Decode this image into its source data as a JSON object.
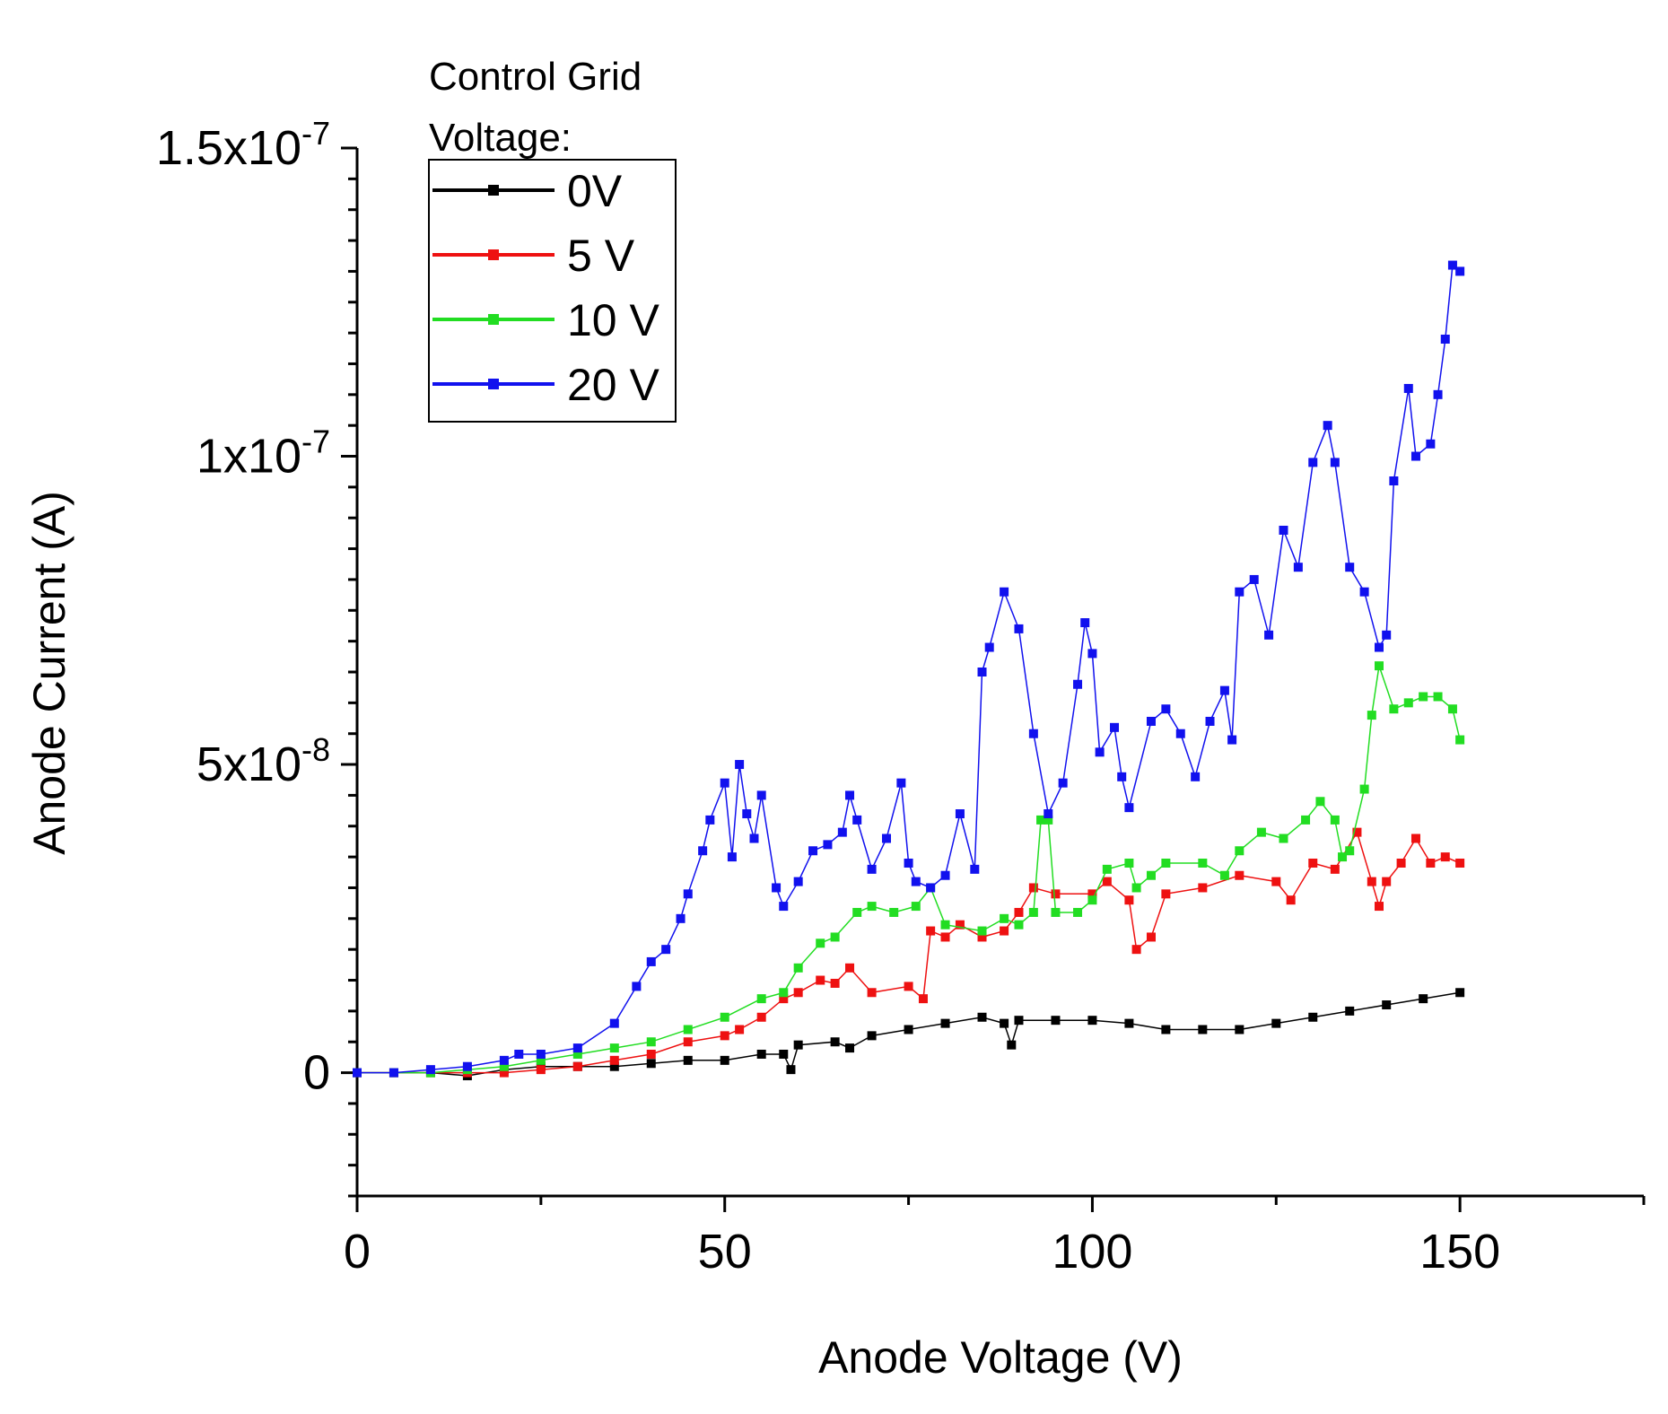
{
  "chart_data": {
    "type": "line",
    "xlabel": "Anode Voltage (V)",
    "ylabel": "Anode Current (A)",
    "xlim": [
      0,
      175
    ],
    "ylim": [
      -2e-08,
      1.5e-07
    ],
    "x_ticks": [
      {
        "value": 0,
        "label": "0"
      },
      {
        "value": 50,
        "label": "50"
      },
      {
        "value": 100,
        "label": "100"
      },
      {
        "value": 150,
        "label": "150"
      }
    ],
    "y_ticks": [
      {
        "value": 0,
        "base": "0",
        "exp": ""
      },
      {
        "value": 5e-08,
        "base": "5x10",
        "exp": "-8"
      },
      {
        "value": 1e-07,
        "base": "1x10",
        "exp": "-7"
      },
      {
        "value": 1.5e-07,
        "base": "1.5x10",
        "exp": "-7"
      }
    ],
    "legend": {
      "title_line1": "Control Grid",
      "title_line2": "Voltage:",
      "position": "top-left"
    },
    "grid": false,
    "series": [
      {
        "name": "0V",
        "color": "#000000",
        "points": [
          [
            0,
            0
          ],
          [
            5,
            0
          ],
          [
            10,
            0
          ],
          [
            15,
            -5e-10
          ],
          [
            20,
            5e-10
          ],
          [
            25,
            1e-09
          ],
          [
            30,
            1e-09
          ],
          [
            35,
            1e-09
          ],
          [
            40,
            1.5e-09
          ],
          [
            45,
            2e-09
          ],
          [
            50,
            2e-09
          ],
          [
            55,
            3e-09
          ],
          [
            58,
            3e-09
          ],
          [
            59,
            5e-10
          ],
          [
            60,
            4.5e-09
          ],
          [
            65,
            5e-09
          ],
          [
            67,
            4e-09
          ],
          [
            70,
            6e-09
          ],
          [
            75,
            7e-09
          ],
          [
            80,
            8e-09
          ],
          [
            85,
            9e-09
          ],
          [
            88,
            8e-09
          ],
          [
            89,
            4.5e-09
          ],
          [
            90,
            8.5e-09
          ],
          [
            95,
            8.5e-09
          ],
          [
            100,
            8.5e-09
          ],
          [
            105,
            8e-09
          ],
          [
            110,
            7e-09
          ],
          [
            115,
            7e-09
          ],
          [
            120,
            7e-09
          ],
          [
            125,
            8e-09
          ],
          [
            130,
            9e-09
          ],
          [
            135,
            1e-08
          ],
          [
            140,
            1.1e-08
          ],
          [
            145,
            1.2e-08
          ],
          [
            150,
            1.3e-08
          ]
        ]
      },
      {
        "name": "5 V",
        "color": "#ee1111",
        "points": [
          [
            0,
            0
          ],
          [
            5,
            0
          ],
          [
            10,
            0
          ],
          [
            15,
            0
          ],
          [
            20,
            0
          ],
          [
            25,
            5e-10
          ],
          [
            30,
            1e-09
          ],
          [
            35,
            2e-09
          ],
          [
            40,
            3e-09
          ],
          [
            45,
            5e-09
          ],
          [
            50,
            6e-09
          ],
          [
            52,
            7e-09
          ],
          [
            55,
            9e-09
          ],
          [
            58,
            1.2e-08
          ],
          [
            60,
            1.3e-08
          ],
          [
            63,
            1.5e-08
          ],
          [
            65,
            1.45e-08
          ],
          [
            67,
            1.7e-08
          ],
          [
            70,
            1.3e-08
          ],
          [
            75,
            1.4e-08
          ],
          [
            77,
            1.2e-08
          ],
          [
            78,
            2.3e-08
          ],
          [
            80,
            2.2e-08
          ],
          [
            82,
            2.4e-08
          ],
          [
            85,
            2.2e-08
          ],
          [
            88,
            2.3e-08
          ],
          [
            90,
            2.6e-08
          ],
          [
            92,
            3e-08
          ],
          [
            95,
            2.9e-08
          ],
          [
            100,
            2.9e-08
          ],
          [
            102,
            3.1e-08
          ],
          [
            105,
            2.8e-08
          ],
          [
            106,
            2e-08
          ],
          [
            108,
            2.2e-08
          ],
          [
            110,
            2.9e-08
          ],
          [
            115,
            3e-08
          ],
          [
            120,
            3.2e-08
          ],
          [
            125,
            3.1e-08
          ],
          [
            127,
            2.8e-08
          ],
          [
            130,
            3.4e-08
          ],
          [
            133,
            3.3e-08
          ],
          [
            136,
            3.9e-08
          ],
          [
            138,
            3.1e-08
          ],
          [
            139,
            2.7e-08
          ],
          [
            140,
            3.1e-08
          ],
          [
            142,
            3.4e-08
          ],
          [
            144,
            3.8e-08
          ],
          [
            146,
            3.4e-08
          ],
          [
            148,
            3.5e-08
          ],
          [
            150,
            3.4e-08
          ]
        ]
      },
      {
        "name": "10 V",
        "color": "#22dd22",
        "points": [
          [
            0,
            0
          ],
          [
            5,
            0
          ],
          [
            10,
            0
          ],
          [
            15,
            5e-10
          ],
          [
            20,
            1e-09
          ],
          [
            25,
            2e-09
          ],
          [
            30,
            3e-09
          ],
          [
            35,
            4e-09
          ],
          [
            40,
            5e-09
          ],
          [
            45,
            7e-09
          ],
          [
            50,
            9e-09
          ],
          [
            55,
            1.2e-08
          ],
          [
            58,
            1.3e-08
          ],
          [
            60,
            1.7e-08
          ],
          [
            63,
            2.1e-08
          ],
          [
            65,
            2.2e-08
          ],
          [
            68,
            2.6e-08
          ],
          [
            70,
            2.7e-08
          ],
          [
            73,
            2.6e-08
          ],
          [
            76,
            2.7e-08
          ],
          [
            78,
            3e-08
          ],
          [
            80,
            2.4e-08
          ],
          [
            85,
            2.3e-08
          ],
          [
            88,
            2.5e-08
          ],
          [
            90,
            2.4e-08
          ],
          [
            92,
            2.6e-08
          ],
          [
            93,
            4.1e-08
          ],
          [
            94,
            4.1e-08
          ],
          [
            95,
            2.6e-08
          ],
          [
            98,
            2.6e-08
          ],
          [
            100,
            2.8e-08
          ],
          [
            102,
            3.3e-08
          ],
          [
            105,
            3.4e-08
          ],
          [
            106,
            3e-08
          ],
          [
            108,
            3.2e-08
          ],
          [
            110,
            3.4e-08
          ],
          [
            115,
            3.4e-08
          ],
          [
            118,
            3.2e-08
          ],
          [
            120,
            3.6e-08
          ],
          [
            123,
            3.9e-08
          ],
          [
            126,
            3.8e-08
          ],
          [
            129,
            4.1e-08
          ],
          [
            131,
            4.4e-08
          ],
          [
            133,
            4.1e-08
          ],
          [
            134,
            3.5e-08
          ],
          [
            135,
            3.6e-08
          ],
          [
            137,
            4.6e-08
          ],
          [
            138,
            5.8e-08
          ],
          [
            139,
            6.6e-08
          ],
          [
            141,
            5.9e-08
          ],
          [
            143,
            6e-08
          ],
          [
            145,
            6.1e-08
          ],
          [
            147,
            6.1e-08
          ],
          [
            149,
            5.9e-08
          ],
          [
            150,
            5.4e-08
          ]
        ]
      },
      {
        "name": "20 V",
        "color": "#1111ee",
        "points": [
          [
            0,
            0
          ],
          [
            5,
            0
          ],
          [
            10,
            5e-10
          ],
          [
            15,
            1e-09
          ],
          [
            20,
            2e-09
          ],
          [
            22,
            3e-09
          ],
          [
            25,
            3e-09
          ],
          [
            30,
            4e-09
          ],
          [
            35,
            8e-09
          ],
          [
            38,
            1.4e-08
          ],
          [
            40,
            1.8e-08
          ],
          [
            42,
            2e-08
          ],
          [
            44,
            2.5e-08
          ],
          [
            45,
            2.9e-08
          ],
          [
            47,
            3.6e-08
          ],
          [
            48,
            4.1e-08
          ],
          [
            50,
            4.7e-08
          ],
          [
            51,
            3.5e-08
          ],
          [
            52,
            5e-08
          ],
          [
            53,
            4.2e-08
          ],
          [
            54,
            3.8e-08
          ],
          [
            55,
            4.5e-08
          ],
          [
            57,
            3e-08
          ],
          [
            58,
            2.7e-08
          ],
          [
            60,
            3.1e-08
          ],
          [
            62,
            3.6e-08
          ],
          [
            64,
            3.7e-08
          ],
          [
            66,
            3.9e-08
          ],
          [
            67,
            4.5e-08
          ],
          [
            68,
            4.1e-08
          ],
          [
            70,
            3.3e-08
          ],
          [
            72,
            3.8e-08
          ],
          [
            74,
            4.7e-08
          ],
          [
            75,
            3.4e-08
          ],
          [
            76,
            3.1e-08
          ],
          [
            78,
            3e-08
          ],
          [
            80,
            3.2e-08
          ],
          [
            82,
            4.2e-08
          ],
          [
            84,
            3.3e-08
          ],
          [
            85,
            6.5e-08
          ],
          [
            86,
            6.9e-08
          ],
          [
            88,
            7.8e-08
          ],
          [
            90,
            7.2e-08
          ],
          [
            92,
            5.5e-08
          ],
          [
            94,
            4.2e-08
          ],
          [
            96,
            4.7e-08
          ],
          [
            98,
            6.3e-08
          ],
          [
            99,
            7.3e-08
          ],
          [
            100,
            6.8e-08
          ],
          [
            101,
            5.2e-08
          ],
          [
            103,
            5.6e-08
          ],
          [
            104,
            4.8e-08
          ],
          [
            105,
            4.3e-08
          ],
          [
            108,
            5.7e-08
          ],
          [
            110,
            5.9e-08
          ],
          [
            112,
            5.5e-08
          ],
          [
            114,
            4.8e-08
          ],
          [
            116,
            5.7e-08
          ],
          [
            118,
            6.2e-08
          ],
          [
            119,
            5.4e-08
          ],
          [
            120,
            7.8e-08
          ],
          [
            122,
            8e-08
          ],
          [
            124,
            7.1e-08
          ],
          [
            126,
            8.8e-08
          ],
          [
            128,
            8.2e-08
          ],
          [
            130,
            9.9e-08
          ],
          [
            132,
            1.05e-07
          ],
          [
            133,
            9.9e-08
          ],
          [
            135,
            8.2e-08
          ],
          [
            137,
            7.8e-08
          ],
          [
            139,
            6.9e-08
          ],
          [
            140,
            7.1e-08
          ],
          [
            141,
            9.6e-08
          ],
          [
            143,
            1.11e-07
          ],
          [
            144,
            1e-07
          ],
          [
            146,
            1.02e-07
          ],
          [
            147,
            1.1e-07
          ],
          [
            148,
            1.19e-07
          ],
          [
            149,
            1.31e-07
          ],
          [
            150,
            1.3e-07
          ]
        ]
      }
    ]
  }
}
